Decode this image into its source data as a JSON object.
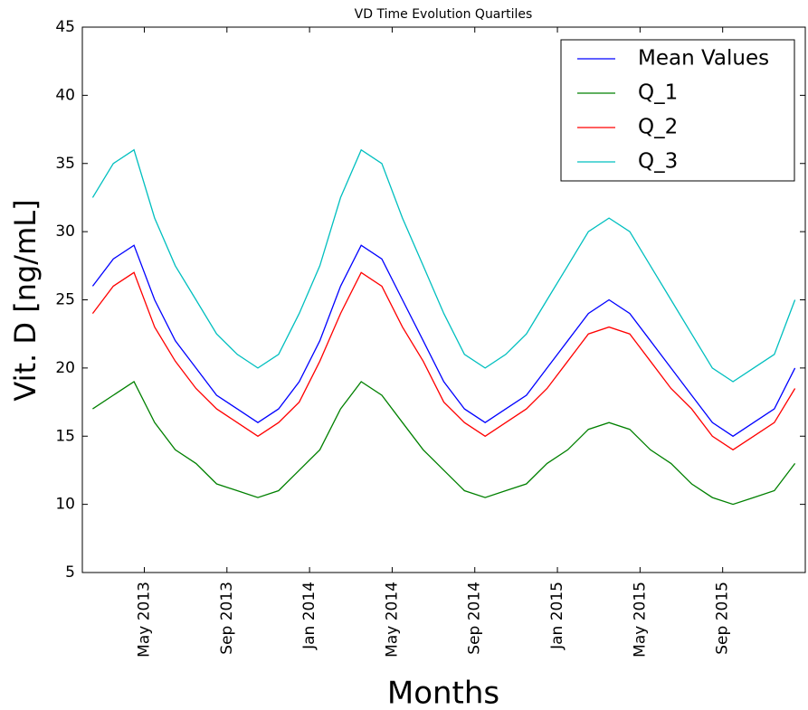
{
  "chart_data": {
    "type": "line",
    "title": "VD Time Evolution Quartiles",
    "x_label": "Months",
    "y_label": "Vit. D [ng/mL]",
    "x": [
      "2013-02",
      "2013-03",
      "2013-04",
      "2013-05",
      "2013-06",
      "2013-07",
      "2013-08",
      "2013-09",
      "2013-10",
      "2013-11",
      "2013-12",
      "2014-01",
      "2014-02",
      "2014-03",
      "2014-04",
      "2014-05",
      "2014-06",
      "2014-07",
      "2014-08",
      "2014-09",
      "2014-10",
      "2014-11",
      "2014-12",
      "2015-01",
      "2015-02",
      "2015-03",
      "2015-04",
      "2015-05",
      "2015-06",
      "2015-07",
      "2015-08",
      "2015-09",
      "2015-10",
      "2015-11",
      "2015-12"
    ],
    "series": [
      {
        "name": "Mean Values",
        "color": "#0000ff",
        "values": [
          26,
          28,
          29,
          25,
          22,
          20,
          18,
          17,
          16,
          17,
          19,
          22,
          26,
          29,
          28,
          25,
          22,
          19,
          17,
          16,
          17,
          18,
          20,
          22,
          24,
          25,
          24,
          22,
          20,
          18,
          16,
          15,
          16,
          17,
          20
        ]
      },
      {
        "name": "Q_1",
        "color": "#008000",
        "values": [
          17,
          18,
          19,
          16,
          14,
          13,
          11.5,
          11,
          10.5,
          11,
          12.5,
          14,
          17,
          19,
          18,
          16,
          14,
          12.5,
          11,
          10.5,
          11,
          11.5,
          13,
          14,
          15.5,
          16,
          15.5,
          14,
          13,
          11.5,
          10.5,
          10,
          10.5,
          11,
          13
        ]
      },
      {
        "name": "Q_2",
        "color": "#ff0000",
        "values": [
          24,
          26,
          27,
          23,
          20.5,
          18.5,
          17,
          16,
          15,
          16,
          17.5,
          20.5,
          24,
          27,
          26,
          23,
          20.5,
          17.5,
          16,
          15,
          16,
          17,
          18.5,
          20.5,
          22.5,
          23,
          22.5,
          20.5,
          18.5,
          17,
          15,
          14,
          15,
          16,
          18.5
        ]
      },
      {
        "name": "Q_3",
        "color": "#00bfbf",
        "values": [
          32.5,
          35,
          36,
          31,
          27.5,
          25,
          22.5,
          21,
          20,
          21,
          24,
          27.5,
          32.5,
          36,
          35,
          31,
          27.5,
          24,
          21,
          20,
          21,
          22.5,
          25,
          27.5,
          30,
          31,
          30,
          27.5,
          25,
          22.5,
          20,
          19,
          20,
          21,
          25
        ]
      }
    ],
    "xlim": [
      "2013-02",
      "2016-01"
    ],
    "xticks": [
      {
        "value": "2013-05",
        "label": "May 2013"
      },
      {
        "value": "2013-09",
        "label": "Sep 2013"
      },
      {
        "value": "2014-01",
        "label": "Jan 2014"
      },
      {
        "value": "2014-05",
        "label": "May 2014"
      },
      {
        "value": "2014-09",
        "label": "Sep 2014"
      },
      {
        "value": "2015-01",
        "label": "Jan 2015"
      },
      {
        "value": "2015-05",
        "label": "May 2015"
      },
      {
        "value": "2015-09",
        "label": "Sep 2015"
      }
    ],
    "ylim": [
      5,
      45
    ],
    "yticks": [
      5,
      10,
      15,
      20,
      25,
      30,
      35,
      40,
      45
    ],
    "grid": false,
    "legend": "upper right"
  }
}
